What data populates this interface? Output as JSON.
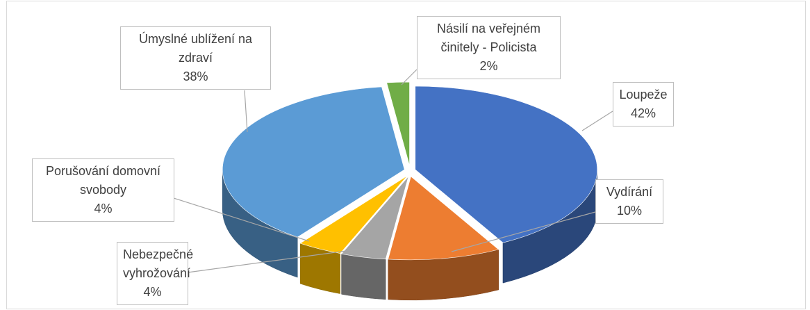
{
  "chart_data": {
    "type": "pie3d",
    "categories": [
      "Loupeže",
      "Vydírání",
      "Nebezpečné vyhrožování",
      "Porušování domovní svobody",
      "Úmyslné ublížení na zdraví",
      "Násilí na veřejném činitely - Policista"
    ],
    "values": [
      42,
      10,
      4,
      4,
      38,
      2
    ],
    "value_labels": [
      "42%",
      "10%",
      "4%",
      "4%",
      "38%",
      "2%"
    ],
    "colors": [
      "#4472c4",
      "#ed7d31",
      "#a5a5a5",
      "#ffc000",
      "#5b9bd5",
      "#70ad47"
    ]
  }
}
